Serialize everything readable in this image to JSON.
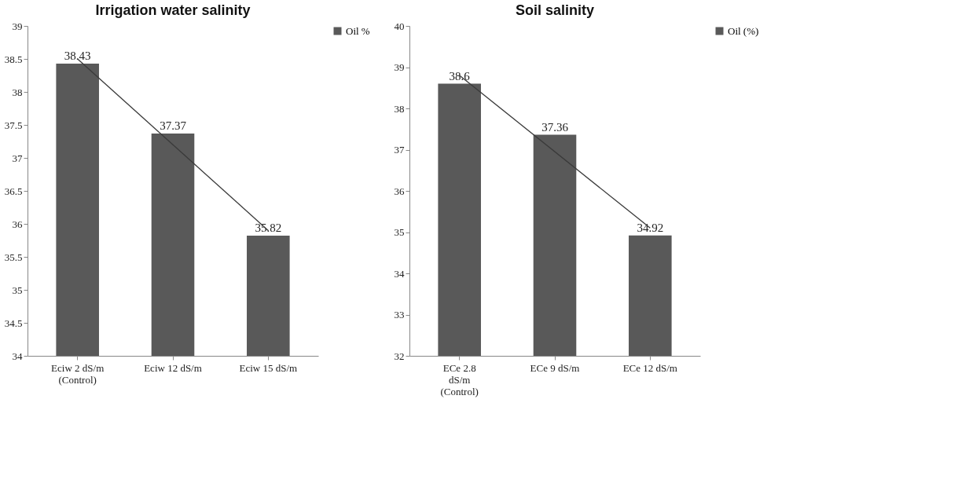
{
  "chart_data": [
    {
      "type": "bar",
      "title": "Irrigation water salinity",
      "categories": [
        "Eciw 2  dS/m\n(Control)",
        "Eciw 12 dS/m",
        "Eciw 15 dS/m"
      ],
      "series": [
        {
          "name": "Oil %",
          "color": "#595959",
          "values": [
            38.43,
            37.37,
            35.82
          ],
          "value_labels": [
            "38.43",
            "37.37",
            "35.82"
          ]
        },
        {
          "type": "line",
          "color": "#3a3a3a",
          "values": [
            38.5,
            null,
            35.9
          ]
        }
      ],
      "ylim": [
        34,
        39
      ],
      "yticks": [
        34,
        34.5,
        35,
        35.5,
        36,
        36.5,
        37,
        37.5,
        38,
        38.5,
        39
      ],
      "legend": "right"
    },
    {
      "type": "bar",
      "title": "Soil salinity",
      "categories": [
        "ECe 2.8\ndS/m\n(Control)",
        "ECe 9  dS/m",
        "ECe 12 dS/m"
      ],
      "series": [
        {
          "name": "Oil (%)",
          "color": "#595959",
          "values": [
            38.6,
            37.36,
            34.92
          ],
          "value_labels": [
            "38.6",
            "37.36",
            "34.92"
          ]
        },
        {
          "type": "line",
          "color": "#3a3a3a",
          "values": [
            38.8,
            null,
            35.1
          ]
        }
      ],
      "ylim": [
        32,
        40
      ],
      "yticks": [
        32,
        33,
        34,
        35,
        36,
        37,
        38,
        39,
        40
      ],
      "legend": "right"
    }
  ]
}
